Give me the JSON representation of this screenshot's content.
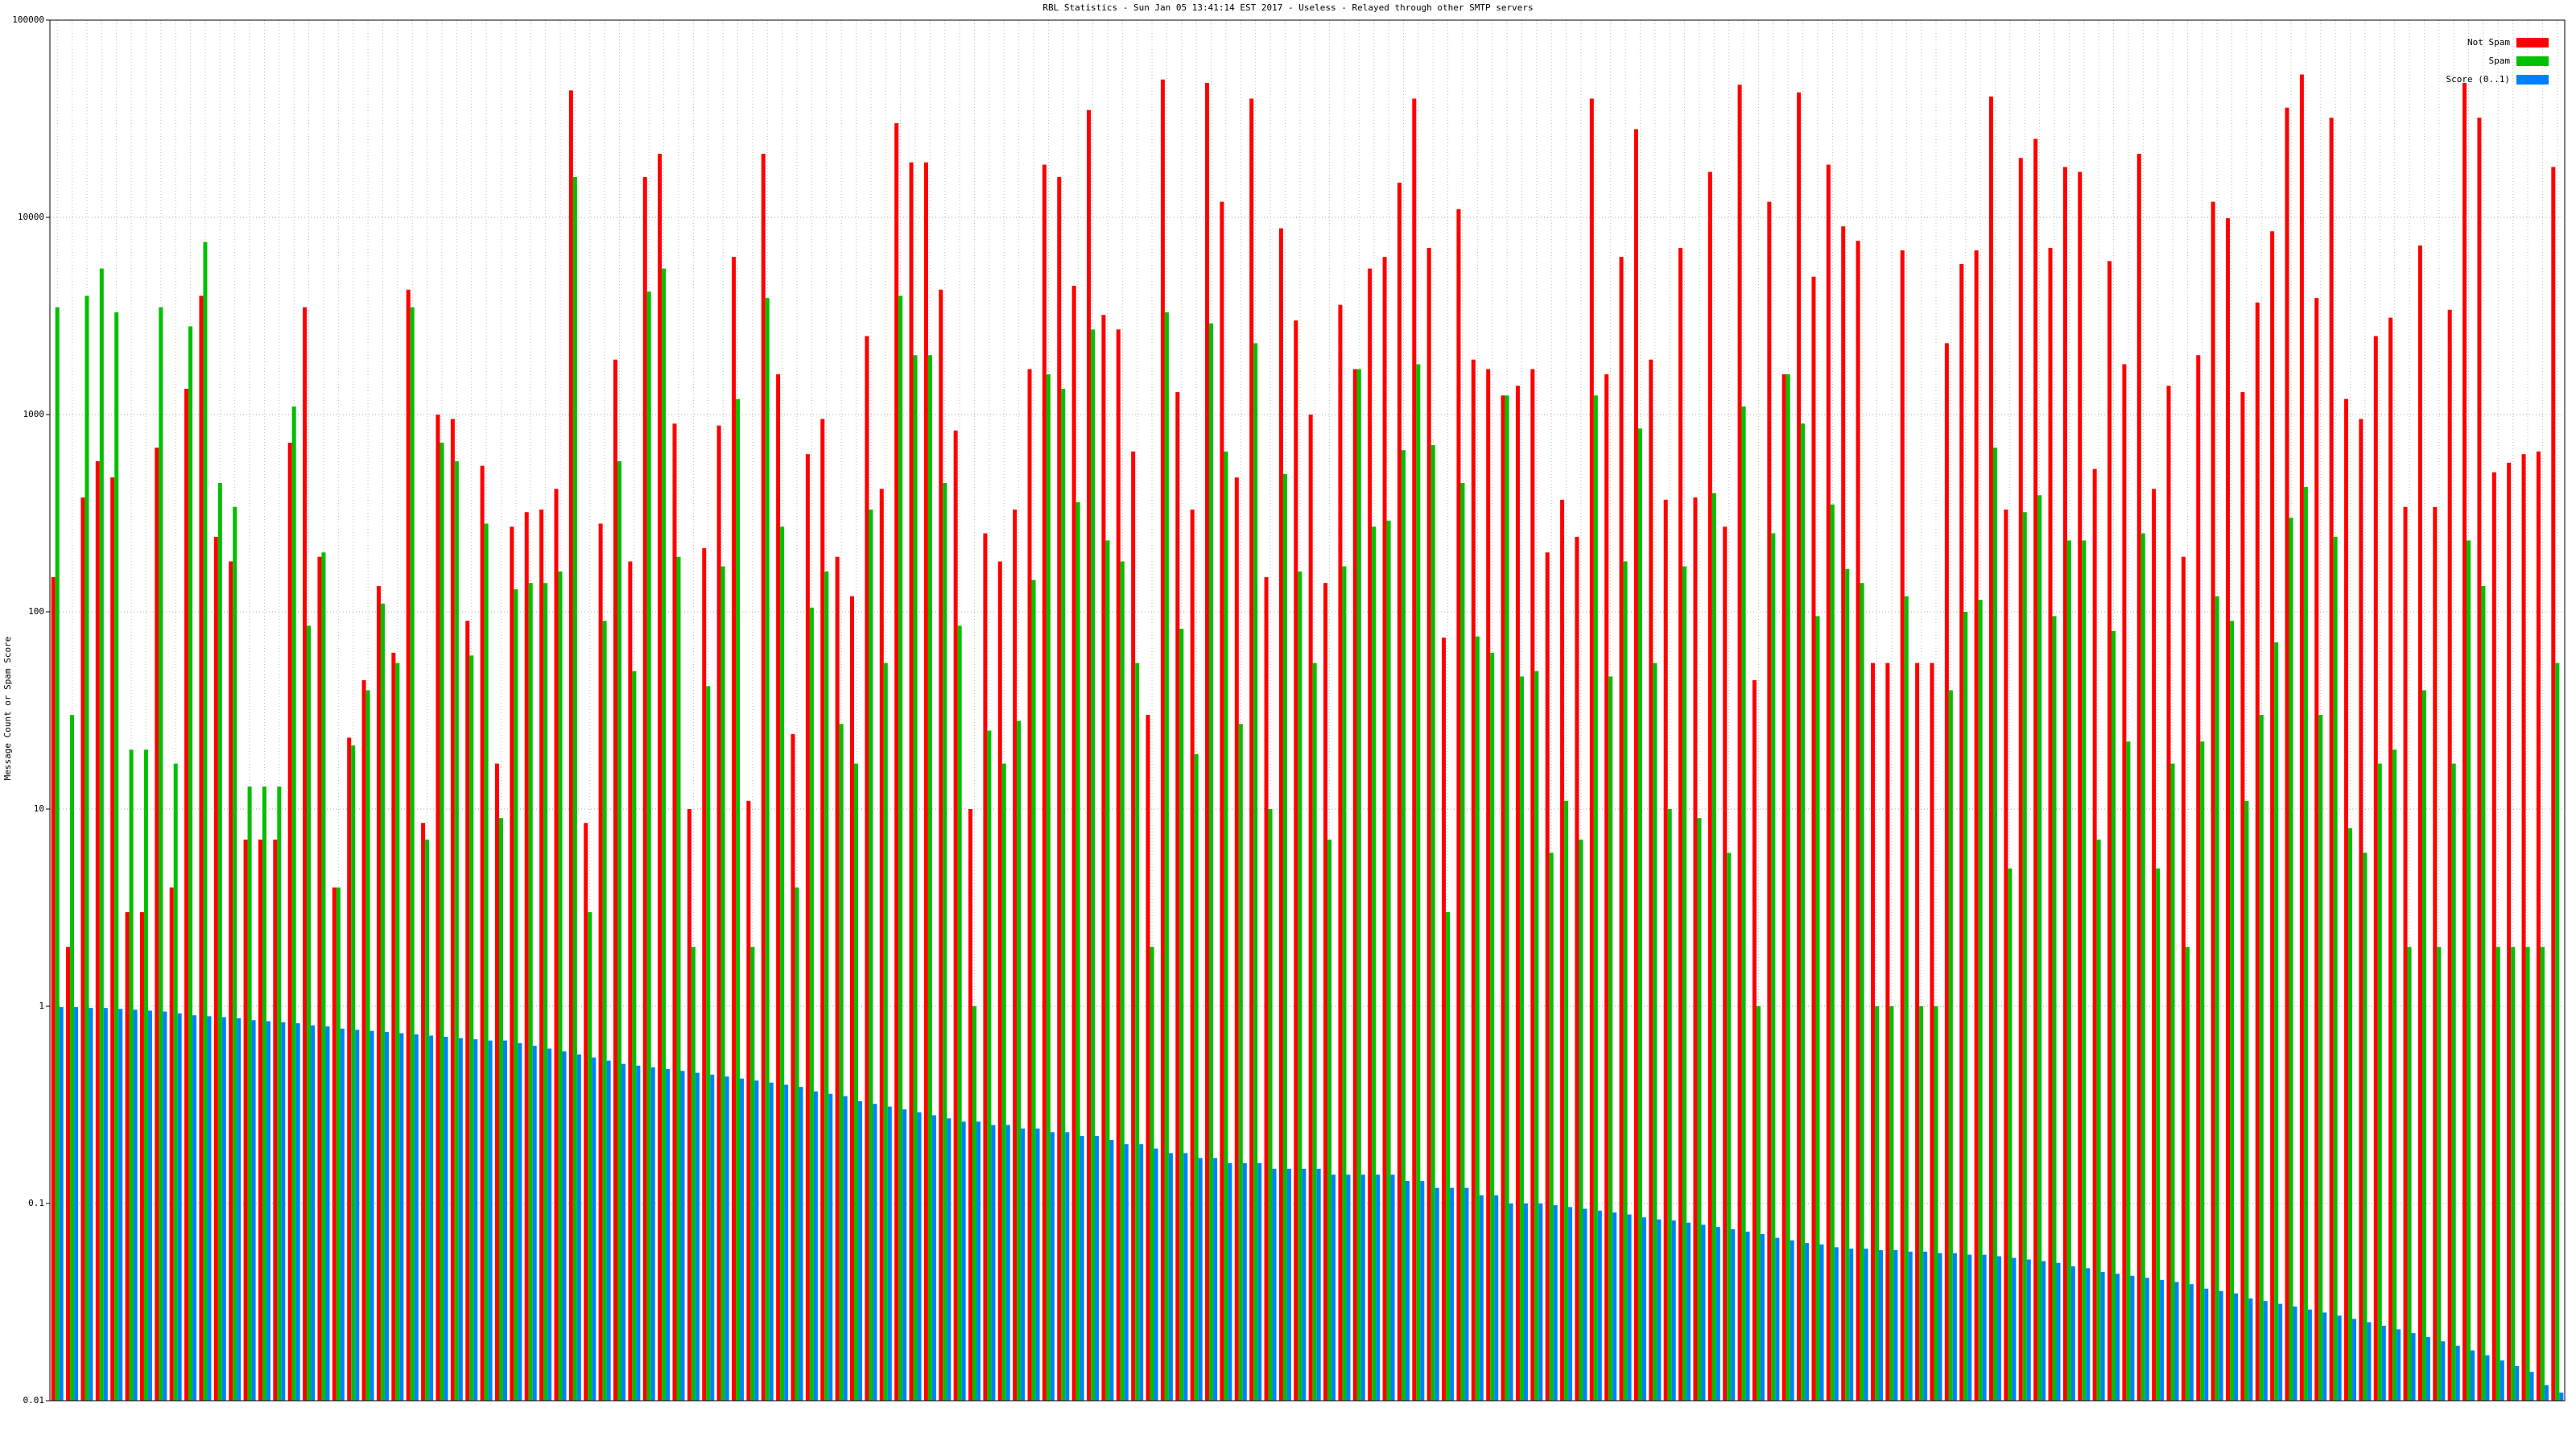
{
  "chart_data": {
    "type": "bar",
    "title": "RBL Statistics - Sun Jan 05 13:41:14 EST 2017 - Useless - Relayed through other SMTP servers",
    "y_label": "Message Count or Spam Score",
    "log_scale": true,
    "grid": true,
    "legend": "top-right",
    "ylim": [
      0.01,
      100000
    ],
    "yticks": [
      0.01,
      0.1,
      1,
      10,
      100,
      1000,
      10000,
      100000
    ],
    "categories": [
      null,
      null,
      null,
      null,
      null,
      null,
      null,
      null,
      null,
      null,
      null,
      null,
      null,
      null,
      null,
      null,
      null,
      null,
      null,
      null,
      null,
      null,
      null,
      null,
      null,
      null,
      null,
      null,
      null,
      null,
      null,
      null,
      null,
      null,
      null,
      null,
      null,
      null,
      null,
      null,
      null,
      null,
      null,
      null,
      null,
      null,
      null,
      null,
      null,
      null,
      null,
      null,
      null,
      null,
      null,
      null,
      null,
      null,
      null,
      null,
      null,
      null,
      null,
      null,
      null,
      null,
      null,
      null,
      null,
      null,
      null,
      null,
      null,
      null,
      null,
      null,
      null,
      null,
      null,
      null,
      null,
      null,
      null,
      null,
      null,
      null,
      null,
      null,
      null,
      null,
      null,
      null,
      null,
      null,
      null,
      null,
      null,
      null,
      null,
      null,
      null,
      null,
      null,
      null,
      null,
      null,
      null,
      null,
      null,
      null,
      null,
      null,
      null,
      null,
      null,
      null,
      null,
      null,
      null,
      null,
      null,
      null,
      null,
      null,
      null,
      null,
      null,
      null,
      null,
      null,
      null,
      null,
      null,
      null,
      null,
      null,
      null,
      null,
      null,
      null,
      null,
      null,
      null,
      null,
      null,
      null,
      null,
      null,
      null,
      null,
      null,
      null,
      null,
      null,
      null,
      null,
      null,
      null,
      null,
      null,
      null,
      null,
      null,
      null,
      null,
      null,
      null,
      null,
      null,
      null
    ],
    "series": [
      {
        "name": "Not Spam",
        "color": "#ff0000",
        "values": [
          150,
          2,
          380,
          580,
          480,
          3,
          3,
          680,
          4,
          1350,
          4000,
          240,
          180,
          7,
          7,
          7,
          720,
          3500,
          190,
          4,
          23,
          45,
          135,
          62,
          4300,
          8.5,
          1000,
          950,
          90,
          550,
          17,
          270,
          320,
          330,
          420,
          44000,
          8.5,
          280,
          1900,
          180,
          16000,
          21000,
          900,
          10,
          210,
          880,
          6300,
          11,
          21000,
          1600,
          24,
          630,
          950,
          190,
          120,
          2500,
          420,
          30000,
          19000,
          19000,
          4300,
          830,
          10,
          250,
          180,
          330,
          1700,
          18500,
          16000,
          4500,
          35000,
          3200,
          2700,
          650,
          30,
          50000,
          1300,
          330,
          48000,
          12000,
          480,
          40000,
          150,
          8800,
          3000,
          1000,
          140,
          3600,
          1700,
          5500,
          6300,
          15000,
          40000,
          7000,
          74,
          11000,
          1900,
          1700,
          1250,
          1400,
          1700,
          200,
          370,
          240,
          40000,
          1600,
          6300,
          28000,
          1900,
          370,
          7000,
          380,
          17000,
          270,
          47000,
          45,
          12000,
          1600,
          43000,
          5000,
          18500,
          9000,
          7600,
          55,
          55,
          6800,
          55,
          55,
          2300,
          5800,
          6800,
          41000,
          330,
          20000,
          25000,
          7000,
          18000,
          17000,
          530,
          6000,
          1800,
          21000,
          420,
          1400,
          190,
          2000,
          12000,
          9900,
          1300,
          3700,
          8500,
          36000,
          53000,
          3900,
          32000,
          1200,
          950,
          2500,
          3100,
          340,
          7200,
          340,
          3400,
          48000,
          32000,
          510,
          570,
          630,
          650,
          18000
        ]
      },
      {
        "name": "Spam",
        "color": "#00c000",
        "values": [
          3500,
          30,
          4000,
          5500,
          3300,
          20,
          20,
          3500,
          17,
          2800,
          7500,
          450,
          340,
          13,
          13,
          13,
          1100,
          85,
          200,
          4,
          21,
          40,
          110,
          55,
          3500,
          7,
          720,
          580,
          60,
          280,
          9,
          130,
          140,
          140,
          160,
          16000,
          3,
          90,
          580,
          50,
          4200,
          5500,
          190,
          2,
          42,
          170,
          1200,
          2,
          3900,
          270,
          4,
          105,
          160,
          27,
          17,
          330,
          55,
          4000,
          2000,
          2000,
          450,
          85,
          1,
          25,
          17,
          28,
          145,
          1600,
          1350,
          360,
          2700,
          230,
          180,
          55,
          2,
          3300,
          82,
          19,
          2900,
          650,
          27,
          2300,
          10,
          500,
          160,
          55,
          7,
          170,
          1700,
          270,
          290,
          660,
          1800,
          700,
          3,
          450,
          75,
          62,
          1250,
          47,
          50,
          6,
          11,
          7,
          1250,
          47,
          180,
          850,
          55,
          10,
          170,
          9,
          400,
          6,
          1100,
          1,
          250,
          1600,
          900,
          95,
          350,
          165,
          140,
          1,
          1,
          120,
          1,
          1,
          40,
          100,
          115,
          680,
          5,
          320,
          390,
          95,
          230,
          230,
          7,
          80,
          22,
          250,
          5,
          17,
          2,
          22,
          120,
          90,
          11,
          30,
          70,
          300,
          430,
          30,
          240,
          8,
          6,
          17,
          20,
          2,
          40,
          2,
          17,
          230,
          135,
          2,
          2,
          2,
          2,
          55
        ]
      },
      {
        "name": "Score (0..1)",
        "color": "#0080ff",
        "values": [
          0.99,
          0.99,
          0.98,
          0.98,
          0.97,
          0.96,
          0.95,
          0.94,
          0.92,
          0.9,
          0.89,
          0.88,
          0.87,
          0.85,
          0.84,
          0.83,
          0.82,
          0.8,
          0.79,
          0.77,
          0.76,
          0.75,
          0.74,
          0.73,
          0.72,
          0.71,
          0.7,
          0.69,
          0.68,
          0.67,
          0.67,
          0.65,
          0.63,
          0.61,
          0.59,
          0.57,
          0.55,
          0.53,
          0.51,
          0.5,
          0.49,
          0.48,
          0.47,
          0.46,
          0.45,
          0.44,
          0.43,
          0.42,
          0.41,
          0.4,
          0.39,
          0.37,
          0.36,
          0.35,
          0.33,
          0.32,
          0.31,
          0.3,
          0.29,
          0.28,
          0.27,
          0.26,
          0.26,
          0.25,
          0.25,
          0.24,
          0.24,
          0.23,
          0.23,
          0.22,
          0.22,
          0.21,
          0.2,
          0.2,
          0.19,
          0.18,
          0.18,
          0.17,
          0.17,
          0.16,
          0.16,
          0.16,
          0.15,
          0.15,
          0.15,
          0.15,
          0.14,
          0.14,
          0.14,
          0.14,
          0.14,
          0.13,
          0.13,
          0.12,
          0.12,
          0.12,
          0.11,
          0.11,
          0.1,
          0.1,
          0.1,
          0.098,
          0.096,
          0.094,
          0.092,
          0.09,
          0.088,
          0.085,
          0.083,
          0.082,
          0.08,
          0.078,
          0.076,
          0.074,
          0.072,
          0.07,
          0.067,
          0.065,
          0.063,
          0.062,
          0.06,
          0.059,
          0.059,
          0.058,
          0.058,
          0.057,
          0.057,
          0.056,
          0.056,
          0.055,
          0.055,
          0.054,
          0.053,
          0.052,
          0.051,
          0.05,
          0.048,
          0.047,
          0.045,
          0.044,
          0.043,
          0.042,
          0.041,
          0.04,
          0.039,
          0.037,
          0.036,
          0.035,
          0.033,
          0.032,
          0.031,
          0.03,
          0.029,
          0.028,
          0.027,
          0.026,
          0.025,
          0.024,
          0.023,
          0.022,
          0.021,
          0.02,
          0.019,
          0.018,
          0.017,
          0.016,
          0.015,
          0.014,
          0.012,
          0.011
        ]
      }
    ]
  }
}
